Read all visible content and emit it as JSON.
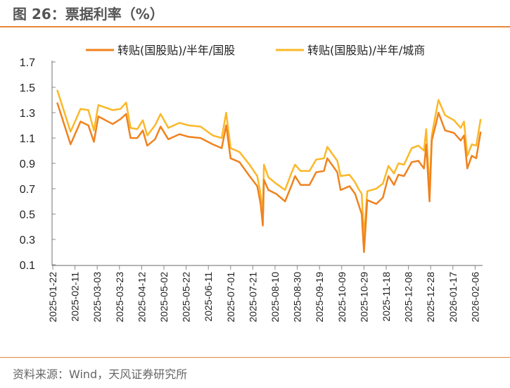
{
  "title": "图 26：票据利率（%）",
  "source": "资料来源：Wind，天风证券研究所",
  "chart_data": {
    "type": "line",
    "title": "",
    "xlabel": "",
    "ylabel": "",
    "ylim": [
      0.1,
      1.7
    ],
    "yticks": [
      "1.7",
      "1.5",
      "1.3",
      "1.1",
      "0.9",
      "0.7",
      "0.5",
      "0.3",
      "0.1"
    ],
    "xticks": [
      "2025-01-22",
      "2025-02-11",
      "2025-03-03",
      "2025-03-23",
      "2025-04-12",
      "2025-05-02",
      "2025-05-22",
      "2025-06-11",
      "2025-07-01",
      "2025-07-21",
      "2025-08-10",
      "2025-08-30",
      "2025-09-19",
      "2025-10-09",
      "2025-10-29",
      "2025-11-18",
      "2025-12-08",
      "2025-12-28",
      "2026-01-17",
      "2026-02-06"
    ],
    "grid": false,
    "legend": "top",
    "x": [
      "2025-01-26",
      "2025-02-07",
      "2025-02-16",
      "2025-02-23",
      "2025-02-28",
      "2025-03-04",
      "2025-03-17",
      "2025-03-24",
      "2025-03-29",
      "2025-04-02",
      "2025-04-08",
      "2025-04-13",
      "2025-04-17",
      "2025-04-24",
      "2025-04-29",
      "2025-05-06",
      "2025-05-16",
      "2025-05-24",
      "2025-06-04",
      "2025-06-15",
      "2025-06-23",
      "2025-06-27",
      "2025-07-01",
      "2025-07-09",
      "2025-07-18",
      "2025-07-25",
      "2025-07-28",
      "2025-07-30",
      "2025-07-31",
      "2025-08-04",
      "2025-08-11",
      "2025-08-19",
      "2025-08-25",
      "2025-08-28",
      "2025-09-02",
      "2025-09-10",
      "2025-09-16",
      "2025-09-23",
      "2025-09-26",
      "2025-10-05",
      "2025-10-08",
      "2025-10-16",
      "2025-10-21",
      "2025-10-24",
      "2025-10-27",
      "2025-10-29",
      "2025-11-01",
      "2025-11-09",
      "2025-11-15",
      "2025-11-20",
      "2025-11-25",
      "2025-11-29",
      "2025-12-04",
      "2025-12-11",
      "2025-12-17",
      "2025-12-22",
      "2025-12-24",
      "2025-12-27",
      "2025-12-29",
      "2026-01-02",
      "2026-01-04",
      "2026-01-10",
      "2026-01-18",
      "2026-01-24",
      "2026-01-27",
      "2026-01-30",
      "2026-02-03",
      "2026-02-07",
      "2026-02-11"
    ],
    "series": [
      {
        "name": "转贴(国股贴)/半年/国股",
        "color": "#f0821e",
        "values": [
          1.38,
          1.05,
          1.23,
          1.2,
          1.07,
          1.27,
          1.21,
          1.25,
          1.29,
          1.1,
          1.1,
          1.16,
          1.04,
          1.09,
          1.19,
          1.09,
          1.13,
          1.11,
          1.1,
          1.05,
          1.02,
          1.2,
          0.94,
          0.91,
          0.8,
          0.72,
          0.58,
          0.41,
          0.77,
          0.69,
          0.66,
          0.6,
          0.73,
          0.8,
          0.73,
          0.73,
          0.83,
          0.84,
          0.94,
          0.83,
          0.69,
          0.72,
          0.66,
          0.58,
          0.5,
          0.2,
          0.61,
          0.58,
          0.63,
          0.8,
          0.73,
          0.81,
          0.8,
          0.91,
          0.92,
          0.86,
          1.05,
          0.6,
          1.08,
          1.22,
          1.3,
          1.16,
          1.14,
          1.08,
          1.12,
          0.86,
          0.96,
          0.94,
          1.15
        ]
      },
      {
        "name": "转贴(国股贴)/半年/城商",
        "color": "#fbb829",
        "values": [
          1.48,
          1.15,
          1.33,
          1.32,
          1.16,
          1.36,
          1.32,
          1.33,
          1.38,
          1.18,
          1.17,
          1.24,
          1.12,
          1.2,
          1.29,
          1.18,
          1.22,
          1.2,
          1.19,
          1.12,
          1.1,
          1.3,
          1.02,
          0.99,
          0.89,
          0.8,
          0.66,
          0.5,
          0.89,
          0.79,
          0.74,
          0.69,
          0.83,
          0.89,
          0.84,
          0.84,
          0.93,
          0.94,
          1.03,
          0.92,
          0.8,
          0.81,
          0.75,
          0.7,
          0.66,
          0.32,
          0.68,
          0.7,
          0.74,
          0.88,
          0.82,
          0.9,
          0.89,
          1.02,
          1.04,
          1.0,
          1.17,
          0.68,
          1.12,
          1.31,
          1.4,
          1.28,
          1.24,
          1.18,
          1.23,
          0.96,
          1.05,
          1.04,
          1.25
        ]
      }
    ]
  }
}
